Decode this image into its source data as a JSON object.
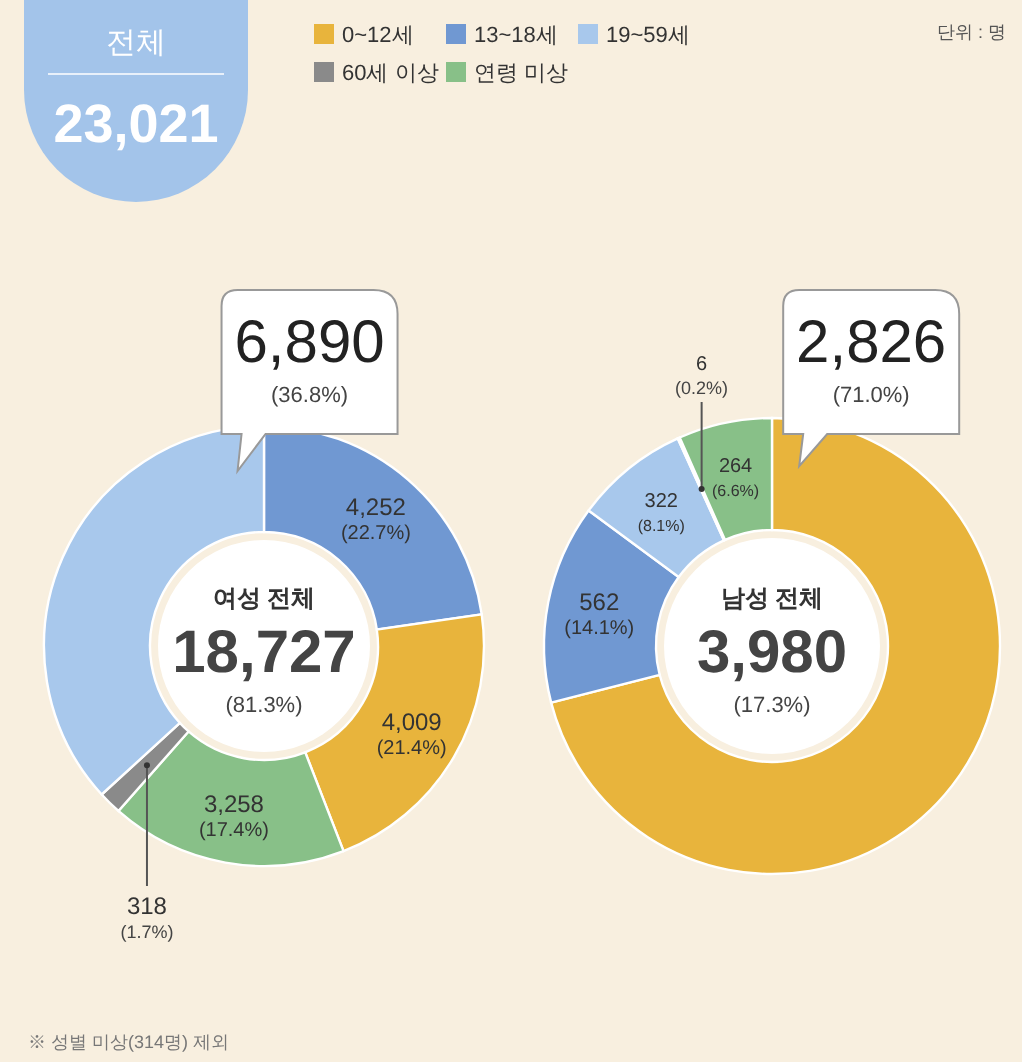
{
  "chart_data": [
    {
      "type": "donut",
      "title": "여성 전체",
      "subtitle": "18,727",
      "annotations": [
        "(81.3%)",
        "전체",
        "23,021",
        "단위 : 명",
        "※ 성별 미상(314명) 제외"
      ],
      "categories": [
        null,
        null,
        null,
        null,
        null
      ],
      "values": [
        4252,
        4009,
        3258,
        318,
        6890
      ],
      "colors": [
        "#7098d2",
        "#e8b43c",
        "#88c088",
        "#8a8a8a",
        "#a8c8ec"
      ],
      "value_labels": [
        "4,252 (22.7%)",
        "4,009 (21.4%)",
        "3,258 (17.4%)",
        "318 (1.7%)",
        "6,890 (36.8%)"
      ]
    },
    {
      "type": "donut",
      "title": "남성 전체",
      "subtitle": "3,980",
      "annotations": [
        "(17.3%)"
      ],
      "legend": "top",
      "categories": [
        "0~12세",
        "13~18세",
        "19~59세",
        "60세 이상",
        "연령 미상"
      ],
      "values": [
        2826,
        562,
        322,
        6,
        264
      ],
      "colors": [
        "#e8b43c",
        "#7098d2",
        "#a8c8ec",
        "#8a8a8a",
        "#88c088"
      ],
      "value_labels": [
        "2,826 (71.0%)",
        "562 (14.1%)",
        "322 (8.1%)",
        "6 (0.2%)",
        "264 (6.6%)"
      ]
    }
  ]
}
